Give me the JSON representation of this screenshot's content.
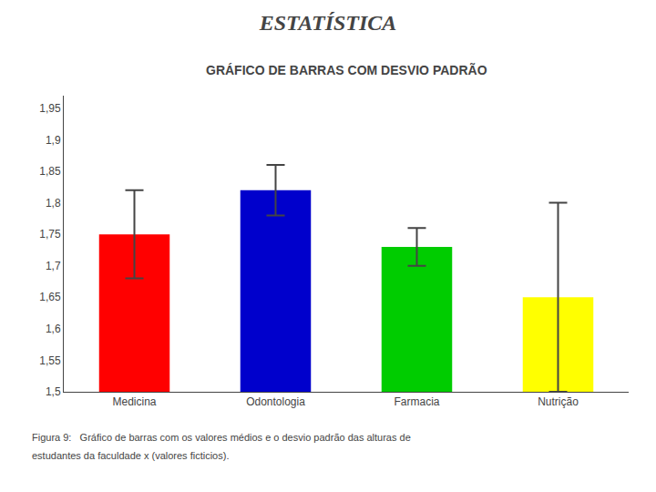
{
  "chart_data": {
    "type": "bar",
    "title": "ESTATÍSTICA",
    "subtitle": "GRÁFICO DE BARRAS COM DESVIO PADRÃO",
    "annotations": [
      "Figura 9:   Gráfico de barras com os valores médios e o desvio padrão das alturas de",
      "estudantes da faculdade x (valores ficticios)."
    ],
    "categories": [
      "Medicina",
      "Odontologia",
      "Farmacia",
      "Nutrição"
    ],
    "values": [
      1.75,
      1.82,
      1.73,
      1.65
    ],
    "errors": [
      0.07,
      0.04,
      0.03,
      0.15
    ],
    "colors": [
      "#ff0000",
      "#0000cc",
      "#00cc00",
      "#ffff00"
    ],
    "ylim": [
      1.5,
      1.97
    ],
    "yticks": [
      {
        "value": 1.5,
        "label": "1,5"
      },
      {
        "value": 1.55,
        "label": "1,55"
      },
      {
        "value": 1.6,
        "label": "1,6"
      },
      {
        "value": 1.65,
        "label": "1,65"
      },
      {
        "value": 1.7,
        "label": "1,7"
      },
      {
        "value": 1.75,
        "label": "1,75"
      },
      {
        "value": 1.8,
        "label": "1,8"
      },
      {
        "value": 1.85,
        "label": "1,85"
      },
      {
        "value": 1.9,
        "label": "1,9"
      },
      {
        "value": 1.95,
        "label": "1,95"
      }
    ],
    "grid": false
  }
}
